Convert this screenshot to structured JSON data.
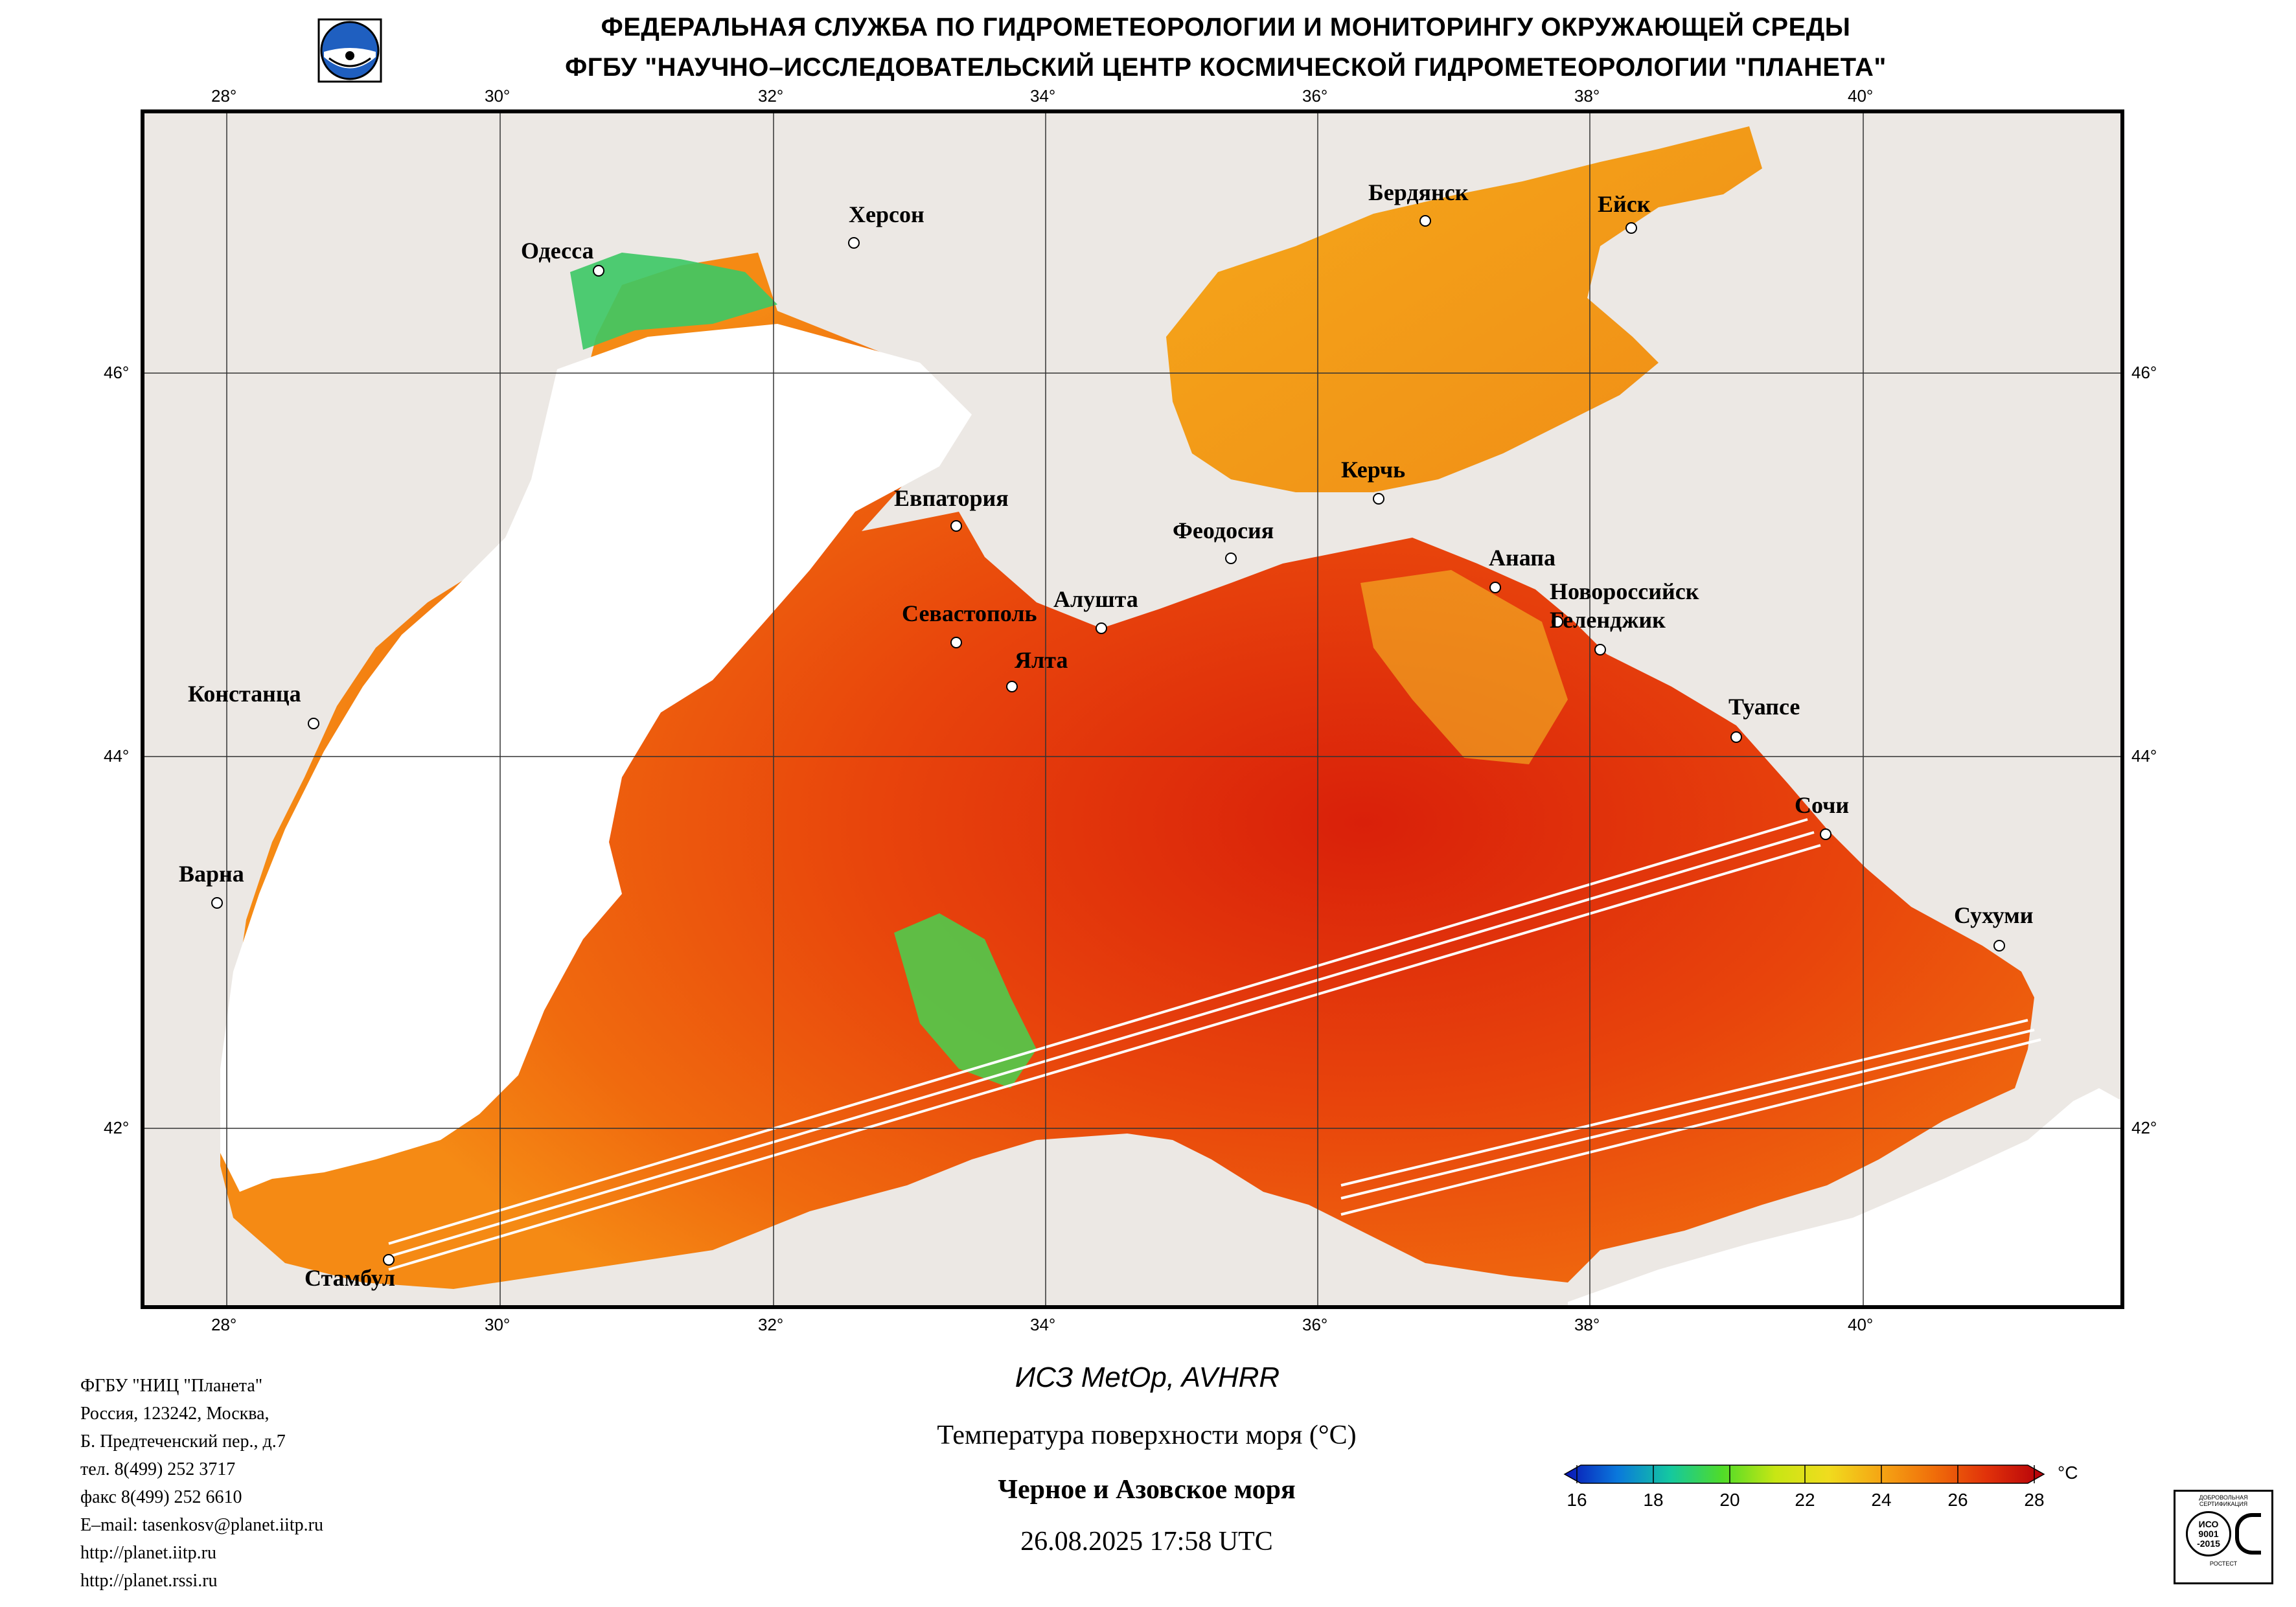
{
  "header": {
    "line1": "ФЕДЕРАЛЬНАЯ СЛУЖБА ПО ГИДРОМЕТЕОРОЛОГИИ И МОНИТОРИНГУ ОКРУЖАЮЩЕЙ СРЕДЫ",
    "line2": "ФГБУ \"НАУЧНО–ИССЛЕДОВАТЕЛЬСКИЙ ЦЕНТР КОСМИЧЕСКОЙ ГИДРОМЕТЕОРОЛОГИИ \"ПЛАНЕТА\""
  },
  "axes": {
    "lon_labels": [
      "28°",
      "30°",
      "32°",
      "34°",
      "36°",
      "38°",
      "40°"
    ],
    "lat_labels": [
      "46°",
      "44°",
      "42°"
    ]
  },
  "cities": [
    {
      "name": "Одесса"
    },
    {
      "name": "Херсон"
    },
    {
      "name": "Бердянск"
    },
    {
      "name": "Ейск"
    },
    {
      "name": "Керчь"
    },
    {
      "name": "Евпатория"
    },
    {
      "name": "Феодосия"
    },
    {
      "name": "Анапа"
    },
    {
      "name": "Новороссийск"
    },
    {
      "name": "Геленджик"
    },
    {
      "name": "Севастополь"
    },
    {
      "name": "Алушта"
    },
    {
      "name": "Ялта"
    },
    {
      "name": "Констанца"
    },
    {
      "name": "Туапсе"
    },
    {
      "name": "Сочи"
    },
    {
      "name": "Варна"
    },
    {
      "name": "Сухуми"
    },
    {
      "name": "Стамбул"
    }
  ],
  "info": {
    "org": "ФГБУ \"НИЦ \"Планета\"",
    "addr1": "Россия, 123242, Москва,",
    "addr2": "Б. Предтеченский пер., д.7",
    "tel": "тел. 8(499) 252 3717",
    "fax": "факс 8(499) 252 6610",
    "email": "E–mail: tasenkosv@planet.iitp.ru",
    "url1": "http://planet.iitp.ru",
    "url2": "http://planet.rssi.ru"
  },
  "caption": {
    "satellite": "ИСЗ MetOp, AVHRR",
    "parameter": "Температура поверхности моря (°C)",
    "region": "Черное и Азовское моря",
    "datetime": "26.08.2025 17:58 UTC"
  },
  "colorbar": {
    "ticks": [
      "16",
      "18",
      "20",
      "22",
      "24",
      "26",
      "28"
    ],
    "unit": "°C",
    "colors": [
      "#0a14b4",
      "#0a78dc",
      "#14c8a0",
      "#50dc28",
      "#c8e614",
      "#f0dc1e",
      "#f5a514",
      "#f06e0a",
      "#e1320a",
      "#b4000a"
    ]
  },
  "cert": {
    "top": "ДОБРОВОЛЬНАЯ СЕРТИФИКАЦИЯ",
    "mid1": "ИСО",
    "mid2": "9001",
    "mid3": "-2015",
    "bottom": "РОСТЕСТ"
  }
}
